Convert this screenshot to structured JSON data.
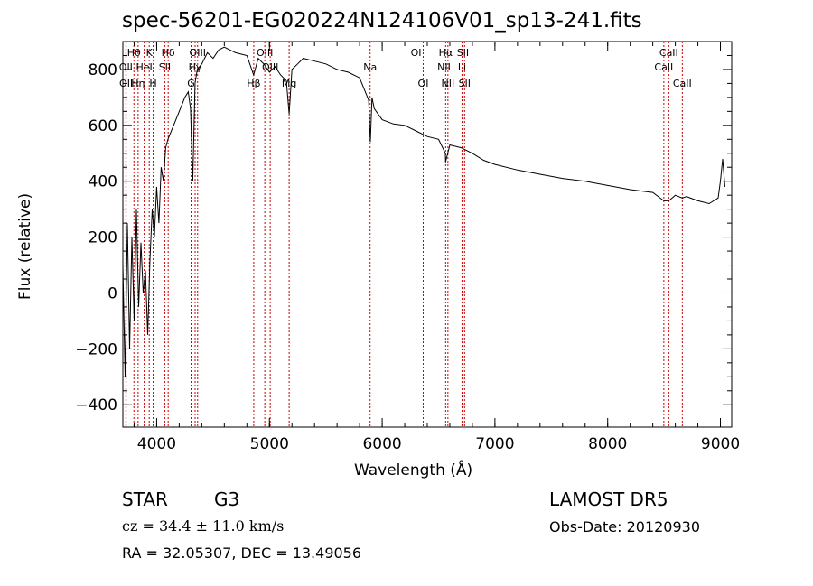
{
  "header": {
    "title": "spec-56201-EG020224N124106V01_sp13-241.fits"
  },
  "footer": {
    "class_label": "STAR",
    "subclass_label": "G3",
    "cz_text": "cz = 34.4 ± 11.0 km/s",
    "radec_text": "RA =  32.05307, DEC =  13.49056",
    "survey_text": "LAMOST DR5",
    "obsdate_text": "Obs-Date: 20120930"
  },
  "chart_data": {
    "type": "line",
    "title": "spec-56201-EG020224N124106V01_sp13-241.fits",
    "xlabel": "Wavelength (Å)",
    "ylabel": "Flux (relative)",
    "xlim": [
      3700,
      9100
    ],
    "ylim": [
      -480,
      900
    ],
    "xticks": [
      4000,
      5000,
      6000,
      7000,
      8000,
      9000
    ],
    "yticks": [
      -400,
      -200,
      0,
      200,
      400,
      600,
      800
    ],
    "grid": false,
    "series": [
      {
        "x": [
          3700,
          3720,
          3740,
          3760,
          3780,
          3800,
          3820,
          3840,
          3860,
          3880,
          3900,
          3920,
          3940,
          3960,
          3980,
          4000,
          4020,
          4040,
          4060,
          4080,
          4100,
          4150,
          4200,
          4250,
          4280,
          4300,
          4320,
          4340,
          4360,
          4400,
          4450,
          4500,
          4550,
          4600,
          4700,
          4800,
          4860,
          4900,
          4950,
          5000,
          5050,
          5100,
          5150,
          5175,
          5200,
          5250,
          5300,
          5400,
          5500,
          5600,
          5700,
          5800,
          5850,
          5880,
          5895,
          5910,
          5930,
          6000,
          6100,
          6200,
          6300,
          6400,
          6500,
          6560,
          6563,
          6600,
          6700,
          6800,
          6900,
          7000,
          7200,
          7400,
          7600,
          7800,
          8000,
          8200,
          8400,
          8498,
          8542,
          8600,
          8662,
          8700,
          8800,
          8900,
          8980,
          9000,
          9020,
          9040
        ],
        "y": [
          100,
          -300,
          250,
          -200,
          200,
          -100,
          300,
          -50,
          180,
          0,
          80,
          -150,
          120,
          300,
          200,
          380,
          250,
          450,
          400,
          520,
          550,
          600,
          650,
          700,
          720,
          660,
          400,
          750,
          800,
          820,
          860,
          840,
          870,
          880,
          860,
          850,
          780,
          840,
          820,
          790,
          810,
          780,
          760,
          640,
          800,
          820,
          840,
          830,
          820,
          800,
          790,
          770,
          720,
          690,
          540,
          700,
          660,
          620,
          605,
          600,
          580,
          560,
          550,
          500,
          470,
          530,
          520,
          500,
          475,
          460,
          440,
          425,
          410,
          400,
          385,
          370,
          360,
          330,
          330,
          350,
          340,
          345,
          330,
          320,
          340,
          400,
          480,
          380
        ]
      }
    ],
    "line_markers": [
      {
        "label": "Hθ",
        "x": 3798,
        "row": 1
      },
      {
        "label": "OII",
        "x": 3727,
        "row": 2
      },
      {
        "label": "OII",
        "x": 3729,
        "row": 3
      },
      {
        "label": "Hη",
        "x": 3835,
        "row": 3
      },
      {
        "label": "HeI",
        "x": 3889,
        "row": 2
      },
      {
        "label": "K",
        "x": 3934,
        "row": 1
      },
      {
        "label": "H",
        "x": 3969,
        "row": 3
      },
      {
        "label": "SII",
        "x": 4072,
        "row": 2
      },
      {
        "label": "Hδ",
        "x": 4102,
        "row": 1
      },
      {
        "label": "OIII",
        "x": 4363,
        "row": 1
      },
      {
        "label": "Hγ",
        "x": 4341,
        "row": 2
      },
      {
        "label": "G",
        "x": 4305,
        "row": 3
      },
      {
        "label": "Hβ",
        "x": 4861,
        "row": 3
      },
      {
        "label": "OIII",
        "x": 4959,
        "row": 1
      },
      {
        "label": "OIII",
        "x": 5007,
        "row": 2
      },
      {
        "label": "Mg",
        "x": 5175,
        "row": 3
      },
      {
        "label": "Na",
        "x": 5893,
        "row": 2
      },
      {
        "label": "OI",
        "x": 6300,
        "row": 1
      },
      {
        "label": "OI",
        "x": 6364,
        "row": 3
      },
      {
        "label": "Hα",
        "x": 6563,
        "row": 1
      },
      {
        "label": "NII",
        "x": 6548,
        "row": 2
      },
      {
        "label": "NII",
        "x": 6583,
        "row": 3
      },
      {
        "label": "SII",
        "x": 6716,
        "row": 1
      },
      {
        "label": "Li",
        "x": 6708,
        "row": 2
      },
      {
        "label": "SII",
        "x": 6731,
        "row": 3
      },
      {
        "label": "CaII",
        "x": 8542,
        "row": 1
      },
      {
        "label": "CaII",
        "x": 8498,
        "row": 2
      },
      {
        "label": "CaII",
        "x": 8662,
        "row": 3
      }
    ]
  },
  "colors": {
    "marker_line": "#cc0000",
    "spectrum": "#000000"
  }
}
